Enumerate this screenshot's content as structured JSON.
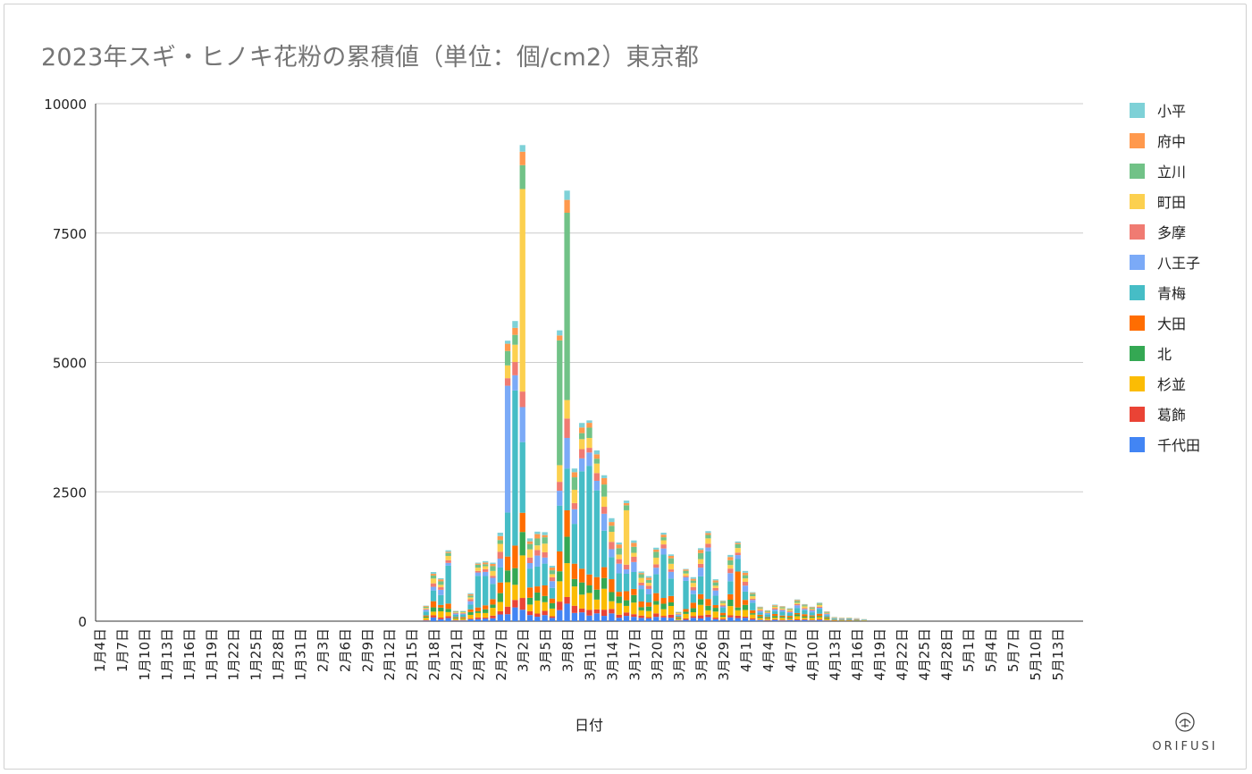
{
  "chart_data": {
    "type": "bar",
    "stacked": true,
    "title": "2023年スギ・ヒノキ花粉の累積値（単位：個/cm2）東京都",
    "xlabel": "日付",
    "ylabel": "",
    "ylim": [
      0,
      10000
    ],
    "yticks": [
      "0",
      "2500",
      "5000",
      "7500",
      "10000"
    ],
    "grid": true,
    "legend_position": "right",
    "x_ticks": [
      "1月4日",
      "1月7日",
      "1月10日",
      "1月13日",
      "1月16日",
      "1月19日",
      "1月22日",
      "1月25日",
      "1月28日",
      "1月31日",
      "2月3日",
      "2月6日",
      "2月9日",
      "2月12日",
      "2月15日",
      "2月18日",
      "2月21日",
      "2月24日",
      "2月27日",
      "3月2日",
      "3月5日",
      "3月8日",
      "3月11日",
      "3月14日",
      "3月17日",
      "3月20日",
      "3月23日",
      "3月26日",
      "3月29日",
      "4月1日",
      "4月4日",
      "4月7日",
      "4月10日",
      "4月13日",
      "4月16日",
      "4月19日",
      "4月22日",
      "4月25日",
      "4月28日",
      "5月1日",
      "5月4日",
      "5月7日",
      "5月10日",
      "5月13日"
    ],
    "series_order_bottom_to_top": [
      "千代田",
      "葛飾",
      "杉並",
      "北",
      "大田",
      "青梅",
      "八王子",
      "多摩",
      "町田",
      "立川",
      "府中",
      "小平"
    ],
    "legend_order": [
      "小平",
      "府中",
      "立川",
      "町田",
      "多摩",
      "八王子",
      "青梅",
      "大田",
      "北",
      "杉並",
      "葛飾",
      "千代田"
    ],
    "colors": {
      "千代田": "#4285f4",
      "葛飾": "#ea4335",
      "杉並": "#fbbc04",
      "北": "#34a853",
      "大田": "#ff6d01",
      "青梅": "#46bdc6",
      "八王子": "#7baaf7",
      "多摩": "#f07b72",
      "町田": "#fcd04f",
      "立川": "#71c287",
      "府中": "#ff994d",
      "小平": "#7ed1d7"
    },
    "daily_totals": [
      {
        "date": "2月17日",
        "total": 300
      },
      {
        "date": "2月18日",
        "total": 950
      },
      {
        "date": "2月19日",
        "total": 830
      },
      {
        "date": "2月20日",
        "total": 1370
      },
      {
        "date": "2月21日",
        "total": 200
      },
      {
        "date": "2月22日",
        "total": 200
      },
      {
        "date": "2月23日",
        "total": 540
      },
      {
        "date": "2月24日",
        "total": 1130
      },
      {
        "date": "2月25日",
        "total": 1160
      },
      {
        "date": "2月26日",
        "total": 1130
      },
      {
        "date": "2月27日",
        "total": 1710
      },
      {
        "date": "2月28日",
        "total": 5420
      },
      {
        "date": "3月1日",
        "total": 5800
      },
      {
        "date": "3月2日",
        "total": 9200
      },
      {
        "date": "3月3日",
        "total": 1600
      },
      {
        "date": "3月4日",
        "total": 1730
      },
      {
        "date": "3月5日",
        "total": 1720
      },
      {
        "date": "3月6日",
        "total": 1070
      },
      {
        "date": "3月7日",
        "total": 5620
      },
      {
        "date": "3月8日",
        "total": 8320
      },
      {
        "date": "3月9日",
        "total": 2950
      },
      {
        "date": "3月10日",
        "total": 3830
      },
      {
        "date": "3月11日",
        "total": 3880
      },
      {
        "date": "3月12日",
        "total": 3300
      },
      {
        "date": "3月13日",
        "total": 2820
      },
      {
        "date": "3月14日",
        "total": 1990
      },
      {
        "date": "3月15日",
        "total": 1520
      },
      {
        "date": "3月16日",
        "total": 2330
      },
      {
        "date": "3月17日",
        "total": 1560
      },
      {
        "date": "3月18日",
        "total": 960
      },
      {
        "date": "3月19日",
        "total": 870
      },
      {
        "date": "3月20日",
        "total": 1420
      },
      {
        "date": "3月21日",
        "total": 1710
      },
      {
        "date": "3月22日",
        "total": 1290
      },
      {
        "date": "3月23日",
        "total": 180
      },
      {
        "date": "3月24日",
        "total": 1010
      },
      {
        "date": "3月25日",
        "total": 850
      },
      {
        "date": "3月26日",
        "total": 1410
      },
      {
        "date": "3月27日",
        "total": 1740
      },
      {
        "date": "3月28日",
        "total": 810
      },
      {
        "date": "3月29日",
        "total": 400
      },
      {
        "date": "3月30日",
        "total": 1280
      },
      {
        "date": "3月31日",
        "total": 1540
      },
      {
        "date": "4月1日",
        "total": 970
      },
      {
        "date": "4月2日",
        "total": 560
      },
      {
        "date": "4月3日",
        "total": 280
      },
      {
        "date": "4月4日",
        "total": 210
      },
      {
        "date": "4月5日",
        "total": 320
      },
      {
        "date": "4月6日",
        "total": 290
      },
      {
        "date": "4月7日",
        "total": 250
      },
      {
        "date": "4月8日",
        "total": 420
      },
      {
        "date": "4月9日",
        "total": 330
      },
      {
        "date": "4月10日",
        "total": 280
      },
      {
        "date": "4月11日",
        "total": 360
      },
      {
        "date": "4月12日",
        "total": 190
      },
      {
        "date": "4月13日",
        "total": 80
      },
      {
        "date": "4月14日",
        "total": 70
      },
      {
        "date": "4月15日",
        "total": 70
      },
      {
        "date": "4月16日",
        "total": 60
      },
      {
        "date": "4月17日",
        "total": 40
      }
    ],
    "dominant_series_by_date": {
      "2月20日": "青梅",
      "2月24日": "青梅",
      "2月25日": "青梅",
      "2月28日": "八王子",
      "3月1日": "青梅",
      "3月2日": "町田",
      "3月7日": "立川",
      "3月8日": "立川",
      "3月10日": "青梅",
      "3月11日": "青梅",
      "3月12日": "青梅",
      "3月16日": "町田",
      "3月21日": "青梅",
      "3月24日": "青梅",
      "3月27日": "青梅",
      "3月31日": "大田"
    }
  },
  "logo": {
    "name": "ORIFUSI"
  }
}
